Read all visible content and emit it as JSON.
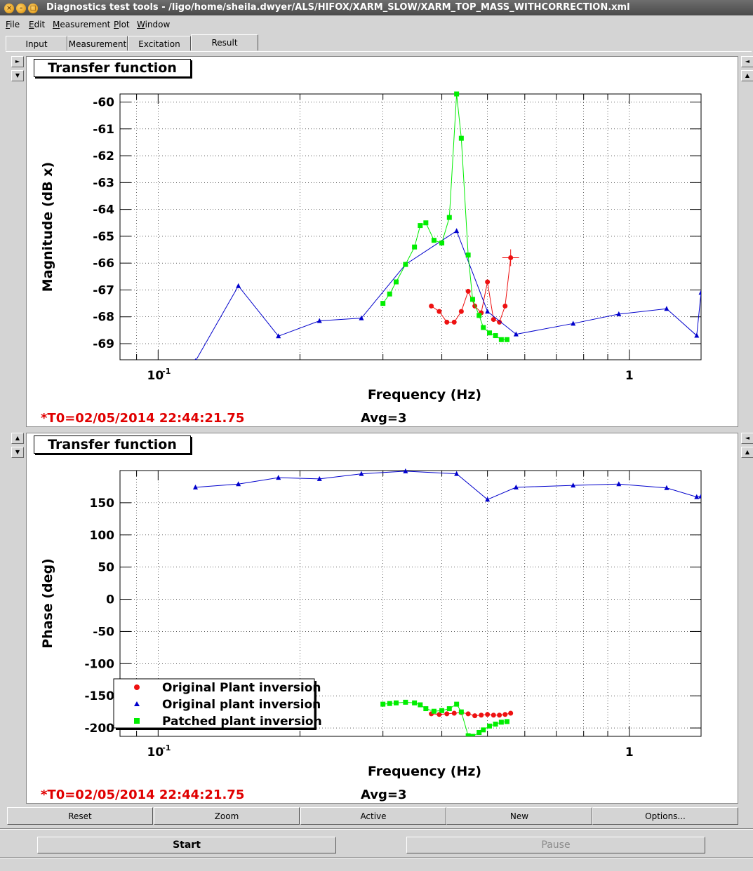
{
  "window": {
    "title": "Diagnostics test tools - /ligo/home/sheila.dwyer/ALS/HIFOX/XARM_SLOW/XARM_TOP_MASS_WITHCORRECTION.xml",
    "controls": [
      "×",
      "–",
      "□"
    ]
  },
  "menu": [
    "File",
    "Edit",
    "Measurement",
    "Plot",
    "Window"
  ],
  "tabs": [
    "Input",
    "Measurement",
    "Excitation",
    "Result"
  ],
  "active_tab": "Result",
  "side_arrows": {
    "up": "▲",
    "down": "▼",
    "right": "►",
    "left": "◄"
  },
  "panels": [
    {
      "title": "Transfer function",
      "t0": "*T0=02/05/2014 22:44:21.75",
      "avg": "Avg=3"
    },
    {
      "title": "Transfer function",
      "t0": "*T0=02/05/2014 22:44:21.75",
      "avg": "Avg=3"
    }
  ],
  "legend": [
    "Original Plant inversion",
    "Original plant inversion",
    "Patched plant inversion"
  ],
  "bottom_buttons": [
    "Reset",
    "Zoom",
    "Active",
    "New",
    "Options..."
  ],
  "start_label": "Start",
  "pause_label": "Pause",
  "colors": {
    "red": "#ee1111",
    "blue": "#0000cc",
    "green": "#00ee00",
    "t0_red": "#e00000"
  },
  "chart_data": [
    {
      "type": "line",
      "xlabel": "Frequency (Hz)",
      "ylabel": "Magnitude (dB x)",
      "xscale": "log",
      "xlim": [
        0.083,
        1.42
      ],
      "ylim": [
        -69.6,
        -59.7
      ],
      "xtick_labels": [
        "10",
        "-1",
        "1"
      ],
      "yticks": [
        -60,
        -61,
        -62,
        -63,
        -64,
        -65,
        -66,
        -67,
        -68,
        -69
      ],
      "grid": true,
      "series": [
        {
          "name": "Original Plant inversion",
          "color": "#ee1111",
          "marker": "circle",
          "x": [
            0.38,
            0.395,
            0.41,
            0.425,
            0.44,
            0.455,
            0.47,
            0.485,
            0.5,
            0.515,
            0.53,
            0.545,
            0.56
          ],
          "y": [
            -67.6,
            -67.8,
            -68.2,
            -68.2,
            -67.8,
            -67.05,
            -67.6,
            -67.85,
            -66.7,
            -68.1,
            -68.2,
            -67.6,
            -65.8
          ]
        },
        {
          "name": "Original plant inversion",
          "color": "#0000cc",
          "marker": "triangle",
          "x": [
            0.12,
            0.148,
            0.18,
            0.22,
            0.27,
            0.335,
            0.43,
            0.5,
            0.575,
            0.76,
            0.95,
            1.2,
            1.39,
            1.42
          ],
          "y": [
            -69.65,
            -66.85,
            -68.72,
            -68.15,
            -68.05,
            -66.05,
            -64.8,
            -67.8,
            -68.65,
            -68.25,
            -67.9,
            -67.7,
            -68.7,
            -67.1
          ]
        },
        {
          "name": "Patched plant inversion",
          "color": "#00ee00",
          "marker": "square",
          "x": [
            0.3,
            0.31,
            0.32,
            0.335,
            0.35,
            0.36,
            0.37,
            0.385,
            0.4,
            0.415,
            0.43,
            0.44,
            0.455,
            0.465,
            0.48,
            0.49,
            0.505,
            0.52,
            0.535,
            0.55
          ],
          "y": [
            -67.5,
            -67.15,
            -66.7,
            -66.05,
            -65.4,
            -64.6,
            -64.5,
            -65.15,
            -65.25,
            -64.3,
            -59.7,
            -61.35,
            -65.7,
            -67.35,
            -67.95,
            -68.4,
            -68.6,
            -68.7,
            -68.85,
            -68.85
          ]
        }
      ]
    },
    {
      "type": "line",
      "xlabel": "Frequency (Hz)",
      "ylabel": "Phase (deg)",
      "xscale": "log",
      "xlim": [
        0.083,
        1.42
      ],
      "ylim": [
        -213,
        200
      ],
      "xtick_labels": [
        "10",
        "-1",
        "1"
      ],
      "yticks": [
        150,
        100,
        50,
        0,
        -50,
        -100,
        -150,
        -200
      ],
      "grid": true,
      "series": [
        {
          "name": "Original Plant inversion",
          "color": "#ee1111",
          "marker": "circle",
          "x": [
            0.38,
            0.395,
            0.41,
            0.425,
            0.44,
            0.455,
            0.47,
            0.485,
            0.5,
            0.515,
            0.53,
            0.545,
            0.56
          ],
          "y": [
            -178,
            -179,
            -178,
            -177,
            -176,
            -178,
            -181,
            -180,
            -179,
            -180,
            -180,
            -179,
            -177
          ]
        },
        {
          "name": "Original plant inversion",
          "color": "#0000cc",
          "marker": "triangle",
          "x": [
            0.12,
            0.148,
            0.18,
            0.22,
            0.27,
            0.335,
            0.43,
            0.5,
            0.575,
            0.76,
            0.95,
            1.2,
            1.39,
            1.42
          ],
          "y": [
            174,
            179,
            189,
            187,
            195,
            199,
            195,
            155,
            174,
            177,
            179,
            173,
            159,
            160
          ]
        },
        {
          "name": "Patched plant inversion",
          "color": "#00ee00",
          "marker": "square",
          "x": [
            0.3,
            0.31,
            0.32,
            0.335,
            0.35,
            0.36,
            0.37,
            0.385,
            0.4,
            0.415,
            0.43,
            0.44,
            0.455,
            0.465,
            0.48,
            0.49,
            0.505,
            0.52,
            0.535,
            0.55
          ],
          "y": [
            -163,
            -162,
            -161,
            -160,
            -161,
            -164,
            -170,
            -174,
            -173,
            -170,
            -163,
            -175,
            -212,
            -213,
            -207,
            -203,
            -197,
            -194,
            -191,
            -190
          ]
        }
      ]
    }
  ]
}
